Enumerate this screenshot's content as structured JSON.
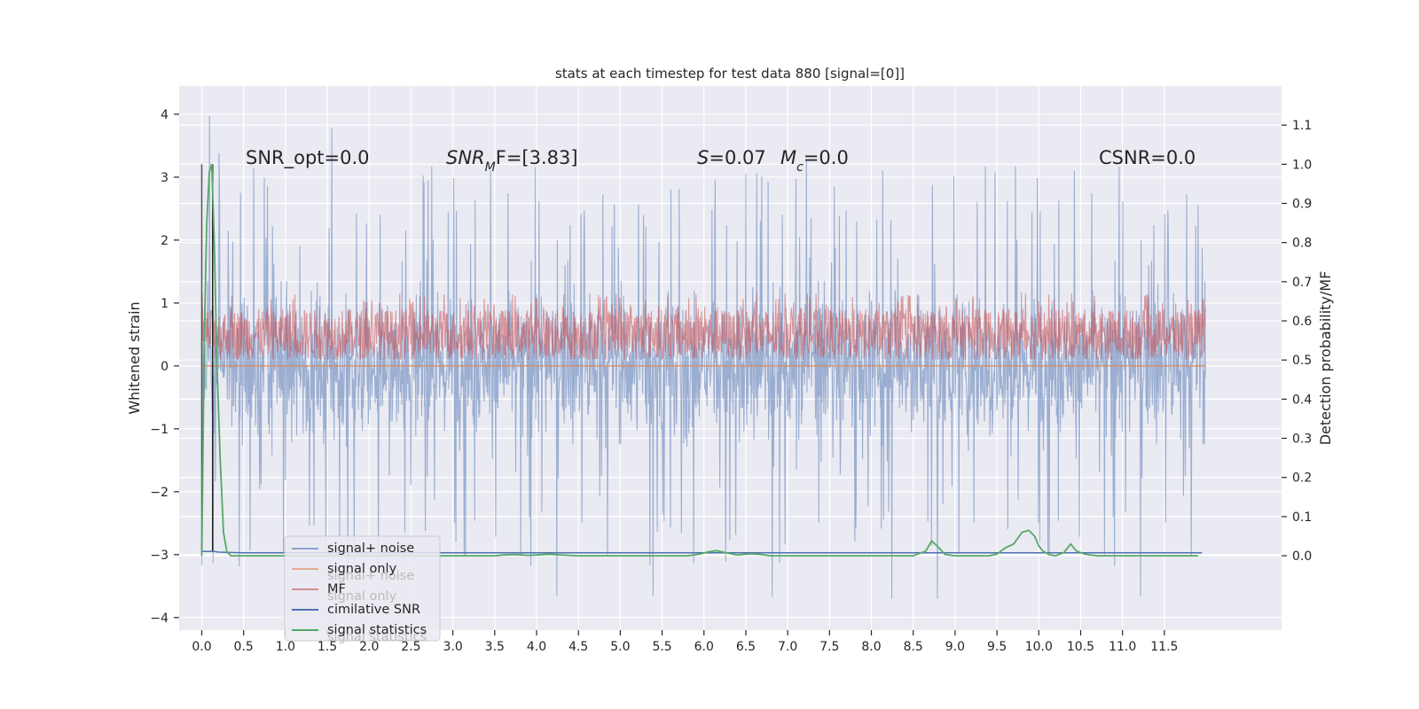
{
  "chart_data": {
    "type": "line",
    "title": "stats at each timestep for test data 880 [signal=[0]]",
    "xlabel": "",
    "ylabel": "Whitened strain",
    "ylabel_right": "Detection probability/MF",
    "xlim": [
      -0.27,
      12.9
    ],
    "ylim": [
      -4.2,
      4.45
    ],
    "ylim_right": [
      -0.19,
      1.2
    ],
    "x_ticks": [
      0.0,
      0.5,
      1.0,
      1.5,
      2.0,
      2.5,
      3.0,
      3.5,
      4.0,
      4.5,
      5.0,
      5.5,
      6.0,
      6.5,
      7.0,
      7.5,
      8.0,
      8.5,
      9.0,
      9.5,
      10.0,
      10.5,
      11.0,
      11.5
    ],
    "x_tick_labels": [
      "0.0",
      "0.5",
      "1.0",
      "1.5",
      "2.0",
      "2.5",
      "3.0",
      "3.5",
      "4.0",
      "4.5",
      "5.0",
      "5.5",
      "6.0",
      "6.5",
      "7.0",
      "7.5",
      "8.0",
      "8.5",
      "9.0",
      "9.5",
      "10.0",
      "10.5",
      "11.0",
      "11.5"
    ],
    "y_ticks": [
      -4,
      -3,
      -2,
      -1,
      0,
      1,
      2,
      3,
      4
    ],
    "y_tick_labels": [
      "−4",
      "−3",
      "−2",
      "−1",
      "0",
      "1",
      "2",
      "3",
      "4"
    ],
    "y_right_ticks": [
      0.0,
      0.1,
      0.2,
      0.3,
      0.4,
      0.5,
      0.6,
      0.7,
      0.8,
      0.9,
      1.0,
      1.1
    ],
    "y_right_tick_labels": [
      "0.0",
      "0.1",
      "0.2",
      "0.3",
      "0.4",
      "0.5",
      "0.6",
      "0.7",
      "0.8",
      "0.9",
      "1.0",
      "1.1"
    ],
    "grid": true,
    "legend_position": "lower-left",
    "annotations": [
      {
        "text": "SNR_opt=0.0"
      },
      {
        "text": "SNR",
        "sub": "M",
        "suffix": "F=[3.83]"
      },
      {
        "text": "S",
        "suffix": "=0.07"
      },
      {
        "text": "M",
        "sub": "c",
        "suffix": "=0.0"
      },
      {
        "text": "CSNR=0.0"
      }
    ],
    "legend_ghost_labels": [
      "signal+ noise",
      "signal only",
      "signal statistics"
    ],
    "series": [
      {
        "name": "signal+ noise",
        "color": "#4c72b0",
        "axis": "left",
        "style": "dense noise trace",
        "core_band": [
          -1.65,
          1.35
        ],
        "spike_range": [
          -3.7,
          4.1
        ]
      },
      {
        "name": "signal only",
        "color": "#dd8452",
        "axis": "left",
        "style": "flat line",
        "value": 0.0
      },
      {
        "name": "MF",
        "color": "#c44e52",
        "axis": "right",
        "style": "dense trace",
        "band": [
          0.5,
          0.63
        ],
        "spike_max": 0.67
      },
      {
        "name": "cimilative SNR",
        "color": "#4c72b0",
        "axis": "left",
        "style": "line",
        "x": [
          0.0,
          0.15,
          0.2,
          0.5,
          1.0,
          2.0,
          3.0,
          4.0,
          5.0,
          6.0,
          7.0,
          8.0,
          9.0,
          10.0,
          11.0,
          11.95
        ],
        "values": [
          -2.95,
          -2.95,
          -2.96,
          -2.97,
          -2.97,
          -2.97,
          -2.97,
          -2.97,
          -2.97,
          -2.97,
          -2.97,
          -2.97,
          -2.97,
          -2.97,
          -2.97,
          -2.97
        ]
      },
      {
        "name": "signal statistics",
        "color": "#55a868",
        "axis": "right",
        "style": "line",
        "x": [
          0.0,
          0.03,
          0.06,
          0.09,
          0.12,
          0.15,
          0.18,
          0.22,
          0.26,
          0.3,
          0.35,
          0.5,
          1.0,
          1.5,
          2.0,
          2.5,
          3.0,
          3.5,
          3.6,
          3.75,
          3.9,
          4.0,
          4.15,
          4.3,
          4.5,
          5.0,
          5.5,
          5.8,
          5.95,
          6.05,
          6.15,
          6.25,
          6.4,
          6.55,
          6.65,
          6.8,
          7.0,
          7.5,
          8.0,
          8.5,
          8.65,
          8.72,
          8.8,
          8.88,
          9.0,
          9.2,
          9.4,
          9.5,
          9.6,
          9.7,
          9.8,
          9.88,
          9.95,
          10.0,
          10.05,
          10.12,
          10.2,
          10.3,
          10.38,
          10.45,
          10.55,
          10.7,
          11.0,
          11.5,
          11.9
        ],
        "values": [
          0.0,
          0.55,
          0.85,
          0.98,
          1.0,
          0.8,
          0.5,
          0.25,
          0.06,
          0.01,
          0.0,
          0.0,
          0.0,
          0.0,
          0.0,
          0.0,
          0.0,
          0.0,
          0.002,
          0.003,
          0.001,
          0.002,
          0.004,
          0.002,
          0.0,
          0.0,
          0.0,
          0.0,
          0.004,
          0.01,
          0.013,
          0.008,
          0.002,
          0.005,
          0.004,
          0.0,
          0.0,
          0.0,
          0.0,
          0.0,
          0.012,
          0.038,
          0.022,
          0.003,
          0.0,
          0.0,
          0.0,
          0.004,
          0.02,
          0.03,
          0.06,
          0.065,
          0.05,
          0.025,
          0.012,
          0.003,
          0.0,
          0.008,
          0.03,
          0.012,
          0.004,
          0.0,
          0.0,
          0.0,
          0.0
        ]
      }
    ]
  }
}
